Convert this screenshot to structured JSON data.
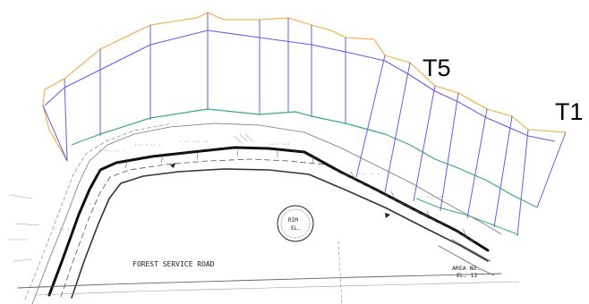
{
  "labels": {
    "transect_start": "T1",
    "transect_mid": "T5"
  },
  "plat": {
    "road_label": "FOREST SERVICE ROAD",
    "road_label_right": "AREA NO.",
    "road_label_right_sub": "EL. 12",
    "seal_line1": "RIM",
    "seal_line2": "EL."
  },
  "colors": {
    "outer_boundary": "#f0b860",
    "transect_lines": "#6a5ce0",
    "shoreline": "#3aa884",
    "plat_ink": "#1a1a1a"
  }
}
